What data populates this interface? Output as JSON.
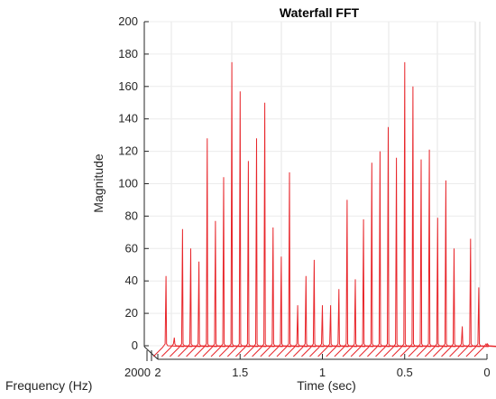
{
  "chart_data": {
    "type": "line",
    "title": "Waterfall FFT",
    "xlabel": "Time (sec)",
    "ylabel": "Magnitude",
    "zlabel": "Frequency (Hz)",
    "ylim": [
      0,
      200
    ],
    "xlim": [
      2,
      0
    ],
    "y_ticks": [
      "0",
      "20",
      "40",
      "60",
      "80",
      "100",
      "120",
      "140",
      "160",
      "180",
      "200"
    ],
    "x_ticks": [
      "2",
      "1.5",
      "1",
      "0.5",
      "0"
    ],
    "z_tick_visible": "2000",
    "grid": true,
    "line_color": "#e8262b",
    "slices": {
      "time": [
        1.95,
        1.9,
        1.85,
        1.8,
        1.75,
        1.7,
        1.65,
        1.6,
        1.55,
        1.5,
        1.45,
        1.4,
        1.35,
        1.3,
        1.25,
        1.2,
        1.15,
        1.1,
        1.05,
        1.0,
        0.95,
        0.9,
        0.85,
        0.8,
        0.75,
        0.7,
        0.65,
        0.6,
        0.55,
        0.5,
        0.45,
        0.4,
        0.35,
        0.3,
        0.25,
        0.2,
        0.15,
        0.1,
        0.05,
        0.0
      ],
      "peak_magnitude": [
        43,
        5,
        72,
        60,
        52,
        128,
        77,
        104,
        175,
        157,
        114,
        128,
        150,
        73,
        55,
        107,
        25,
        43,
        53,
        25,
        25,
        35,
        90,
        41,
        78,
        113,
        120,
        135,
        116,
        175,
        160,
        115,
        121,
        79,
        102,
        60,
        12,
        66,
        36,
        0
      ]
    }
  }
}
